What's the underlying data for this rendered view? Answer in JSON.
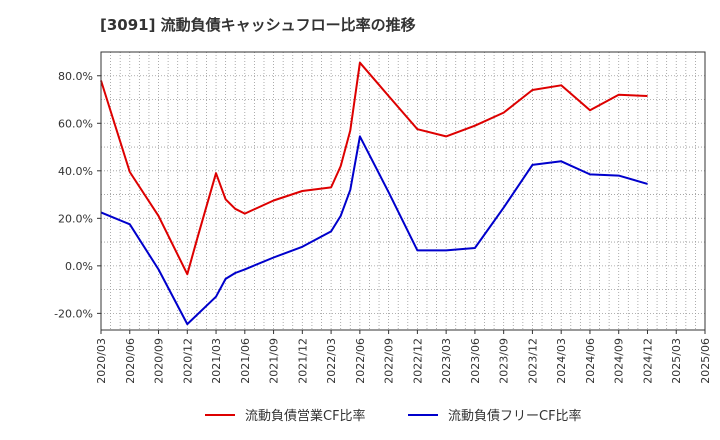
{
  "chart_data": {
    "type": "line",
    "title": "[3091]  流動負債キャッシュフロー比率の推移",
    "xlabel": "",
    "ylabel": "",
    "ylim": [
      -27,
      90
    ],
    "yticks": [
      -20,
      0,
      20,
      40,
      60,
      80
    ],
    "ytick_labels": [
      "-20.0%",
      "0.0%",
      "20.0%",
      "40.0%",
      "60.0%",
      "80.0%"
    ],
    "x_start": "2020/03",
    "x_end": "2025/06",
    "xtick_labels": [
      "2020/03",
      "2020/06",
      "2020/09",
      "2020/12",
      "2021/03",
      "2021/06",
      "2021/09",
      "2021/12",
      "2022/03",
      "2022/06",
      "2022/09",
      "2022/12",
      "2023/03",
      "2023/06",
      "2023/09",
      "2023/12",
      "2024/03",
      "2024/06",
      "2024/09",
      "2024/12",
      "2025/03",
      "2025/06"
    ],
    "grid": true,
    "legend_position": "bottom",
    "series": [
      {
        "name": "流動負債営業CF比率",
        "color": "#dd0000",
        "points": [
          {
            "x": "2020/03",
            "y": 78.0
          },
          {
            "x": "2020/06",
            "y": 39.5
          },
          {
            "x": "2020/09",
            "y": 21.0
          },
          {
            "x": "2020/12",
            "y": -3.5
          },
          {
            "x": "2021/01",
            "y": 11.0
          },
          {
            "x": "2021/03",
            "y": 39.0
          },
          {
            "x": "2021/04",
            "y": 28.0
          },
          {
            "x": "2021/05",
            "y": 24.0
          },
          {
            "x": "2021/06",
            "y": 22.0
          },
          {
            "x": "2021/09",
            "y": 27.5
          },
          {
            "x": "2021/12",
            "y": 31.5
          },
          {
            "x": "2022/03",
            "y": 33.0
          },
          {
            "x": "2022/04",
            "y": 42.0
          },
          {
            "x": "2022/05",
            "y": 57.0
          },
          {
            "x": "2022/06",
            "y": 85.5
          },
          {
            "x": "2022/09",
            "y": 71.5
          },
          {
            "x": "2022/12",
            "y": 57.5
          },
          {
            "x": "2023/03",
            "y": 54.5
          },
          {
            "x": "2023/06",
            "y": 59.0
          },
          {
            "x": "2023/09",
            "y": 64.5
          },
          {
            "x": "2023/12",
            "y": 74.0
          },
          {
            "x": "2024/03",
            "y": 76.0
          },
          {
            "x": "2024/06",
            "y": 65.5
          },
          {
            "x": "2024/09",
            "y": 72.0
          },
          {
            "x": "2024/12",
            "y": 71.5
          }
        ]
      },
      {
        "name": "流動負債フリーCF比率",
        "color": "#0000cc",
        "points": [
          {
            "x": "2020/03",
            "y": 22.5
          },
          {
            "x": "2020/06",
            "y": 17.5
          },
          {
            "x": "2020/09",
            "y": -1.5
          },
          {
            "x": "2020/12",
            "y": -24.5
          },
          {
            "x": "2021/03",
            "y": -13.0
          },
          {
            "x": "2021/04",
            "y": -5.5
          },
          {
            "x": "2021/05",
            "y": -3.0
          },
          {
            "x": "2021/06",
            "y": -1.5
          },
          {
            "x": "2021/09",
            "y": 3.5
          },
          {
            "x": "2021/12",
            "y": 8.0
          },
          {
            "x": "2022/03",
            "y": 14.5
          },
          {
            "x": "2022/04",
            "y": 21.0
          },
          {
            "x": "2022/05",
            "y": 32.0
          },
          {
            "x": "2022/06",
            "y": 54.5
          },
          {
            "x": "2022/09",
            "y": 31.0
          },
          {
            "x": "2022/12",
            "y": 6.5
          },
          {
            "x": "2023/03",
            "y": 6.5
          },
          {
            "x": "2023/06",
            "y": 7.5
          },
          {
            "x": "2023/09",
            "y": 24.5
          },
          {
            "x": "2023/12",
            "y": 42.5
          },
          {
            "x": "2024/03",
            "y": 44.0
          },
          {
            "x": "2024/06",
            "y": 38.5
          },
          {
            "x": "2024/09",
            "y": 38.0
          },
          {
            "x": "2024/12",
            "y": 34.5
          }
        ]
      }
    ]
  }
}
